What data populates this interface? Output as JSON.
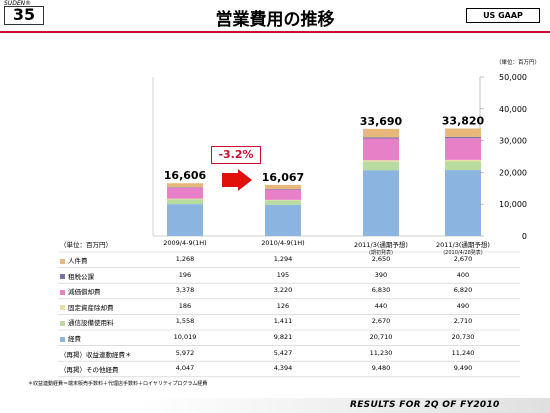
{
  "header": {
    "slide_label": "SUDEN®",
    "slide_number": "35",
    "title": "営業費用の推移",
    "gaap": "US GAAP"
  },
  "unit_note": "（単位：百万円）",
  "change_label": "-3.2%",
  "table_unit": "（単位：百万円）",
  "columns": [
    {
      "label": "2009/4-9(1H)",
      "note": ""
    },
    {
      "label": "2010/4-9(1H)",
      "note": ""
    },
    {
      "label": "2011/3(通期予想)",
      "note": "(期初発表)"
    },
    {
      "label": "2011/3(通期予想)",
      "note": "(2010/4/28発表)"
    }
  ],
  "rows": [
    {
      "label": "人件費",
      "color": "#e8b87a",
      "values": [
        "1,268",
        "1,294",
        "2,650",
        "2,670"
      ]
    },
    {
      "label": "租税公課",
      "color": "#7a6fa8",
      "values": [
        "196",
        "195",
        "390",
        "400"
      ]
    },
    {
      "label": "減価償却費",
      "color": "#e880c8",
      "values": [
        "3,378",
        "3,220",
        "6,830",
        "6,820"
      ]
    },
    {
      "label": "固定資産除却費",
      "color": "#e8e0a0",
      "values": [
        "186",
        "126",
        "440",
        "490"
      ]
    },
    {
      "label": "通信設備使用料",
      "color": "#b8dca0",
      "values": [
        "1,558",
        "1,411",
        "2,670",
        "2,710"
      ]
    },
    {
      "label": "経費",
      "color": "#8cb4e0",
      "values": [
        "10,019",
        "9,821",
        "20,710",
        "20,730"
      ]
    },
    {
      "label": "（再掲）収益連動経費＊",
      "color": "",
      "values": [
        "5,972",
        "5,427",
        "11,230",
        "11,240"
      ]
    },
    {
      "label": "（再掲）その他経費",
      "color": "",
      "values": [
        "4,047",
        "4,394",
        "9,480",
        "9,490"
      ]
    }
  ],
  "footnote": "＊収益連動経費＝端末販売手数料＋代理店手数料＋ロイヤリティプログラム経費",
  "footer": "RESULTS FOR 2Q OF FY2010",
  "chart_data": {
    "type": "bar",
    "stacked": true,
    "categories": [
      "2009/4-9(1H)",
      "2010/4-9(1H)",
      "2011/3(通期予想)(期初発表)",
      "2011/3(通期予想)(2010/4/28発表)"
    ],
    "series": [
      {
        "name": "経費",
        "color": "#8cb4e0",
        "values": [
          10019,
          9821,
          20710,
          20730
        ]
      },
      {
        "name": "通信設備使用料",
        "color": "#b8dca0",
        "values": [
          1558,
          1411,
          2670,
          2710
        ]
      },
      {
        "name": "固定資産除却費",
        "color": "#e8e0a0",
        "values": [
          186,
          126,
          440,
          490
        ]
      },
      {
        "name": "減価償却費",
        "color": "#e880c8",
        "values": [
          3378,
          3220,
          6830,
          6820
        ]
      },
      {
        "name": "租税公課",
        "color": "#7a6fa8",
        "values": [
          196,
          195,
          390,
          400
        ]
      },
      {
        "name": "人件費",
        "color": "#e8b87a",
        "values": [
          1268,
          1294,
          2650,
          2670
        ]
      }
    ],
    "totals": [
      "16,606",
      "16,067",
      "33,690",
      "33,820"
    ],
    "ylim": [
      0,
      50000
    ],
    "yticks": [
      "0",
      "10,000",
      "20,000",
      "30,000",
      "40,000",
      "50,000"
    ],
    "grid": false
  }
}
